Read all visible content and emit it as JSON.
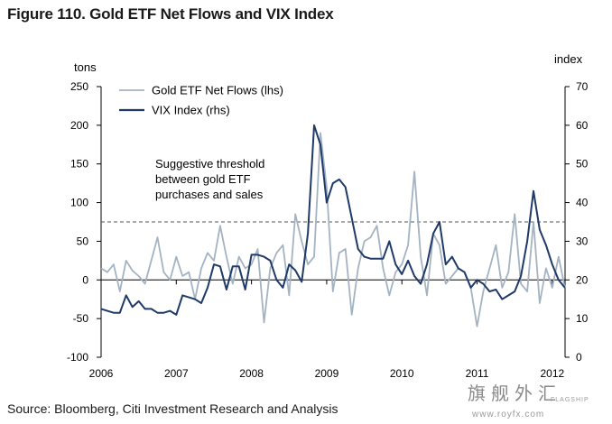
{
  "figure_title": "Figure 110. Gold ETF Net Flows and VIX Index",
  "source": "Source: Bloomberg, Citi Investment Research and Analysis",
  "watermark": {
    "chinese": "旗舰外汇",
    "flagship": "FLAGSHIP",
    "url": "www.royfx.com"
  },
  "colors": {
    "gold_etf": "#a4b3c2",
    "vix": "#1f3a68",
    "axis": "#000000",
    "threshold": "#555555"
  },
  "chart_data": {
    "type": "line",
    "title": "Figure 110. Gold ETF Net Flows and VIX Index",
    "ylabel_left": "tons",
    "ylabel_right": "index",
    "x_ticks": [
      "2006",
      "2007",
      "2008",
      "2009",
      "2010",
      "2011",
      "2012"
    ],
    "ylim_left": [
      -100,
      250
    ],
    "y_ticks_left": [
      "250",
      "200",
      "150",
      "100",
      "50",
      "0",
      "-50",
      "-100"
    ],
    "ylim_right": [
      0,
      70
    ],
    "y_ticks_right": [
      "70",
      "60",
      "50",
      "40",
      "30",
      "20",
      "10",
      "0"
    ],
    "legend_position": "top-left",
    "grid": false,
    "annotation": {
      "lines": [
        "Suggestive threshold",
        "between gold ETF",
        "purchases and sales"
      ],
      "threshold_lhs": 75
    },
    "series": [
      {
        "name": "Gold ETF Net Flows (lhs)",
        "axis": "left",
        "x": [
          2006.0,
          2006.083,
          2006.167,
          2006.25,
          2006.333,
          2006.417,
          2006.5,
          2006.583,
          2006.667,
          2006.75,
          2006.833,
          2006.917,
          2007.0,
          2007.083,
          2007.167,
          2007.25,
          2007.333,
          2007.417,
          2007.5,
          2007.583,
          2007.667,
          2007.75,
          2007.833,
          2007.917,
          2008.0,
          2008.083,
          2008.167,
          2008.25,
          2008.333,
          2008.417,
          2008.5,
          2008.583,
          2008.667,
          2008.75,
          2008.833,
          2008.917,
          2009.0,
          2009.083,
          2009.167,
          2009.25,
          2009.333,
          2009.417,
          2009.5,
          2009.583,
          2009.667,
          2009.75,
          2009.833,
          2009.917,
          2010.0,
          2010.083,
          2010.167,
          2010.25,
          2010.333,
          2010.417,
          2010.5,
          2010.583,
          2010.667,
          2010.75,
          2010.833,
          2010.917,
          2011.0,
          2011.083,
          2011.167,
          2011.25,
          2011.333,
          2011.417,
          2011.5,
          2011.583,
          2011.667,
          2011.75,
          2011.833,
          2011.917,
          2012.0,
          2012.083,
          2012.167
        ],
        "values": [
          15,
          10,
          20,
          -15,
          25,
          12,
          5,
          -5,
          25,
          55,
          10,
          0,
          30,
          5,
          10,
          -25,
          15,
          35,
          25,
          70,
          30,
          -5,
          30,
          15,
          20,
          40,
          -55,
          15,
          35,
          45,
          -20,
          85,
          50,
          20,
          30,
          190,
          120,
          -15,
          35,
          40,
          -45,
          15,
          50,
          55,
          70,
          15,
          -20,
          10,
          20,
          45,
          140,
          30,
          -20,
          60,
          45,
          -5,
          5,
          15,
          10,
          -10,
          -60,
          -15,
          15,
          45,
          -10,
          10,
          85,
          -5,
          -15,
          75,
          -30,
          15,
          -10,
          30,
          -10
        ]
      },
      {
        "name": "VIX Index (rhs)",
        "axis": "right",
        "x": [
          2006.0,
          2006.083,
          2006.167,
          2006.25,
          2006.333,
          2006.417,
          2006.5,
          2006.583,
          2006.667,
          2006.75,
          2006.833,
          2006.917,
          2007.0,
          2007.083,
          2007.167,
          2007.25,
          2007.333,
          2007.417,
          2007.5,
          2007.583,
          2007.667,
          2007.75,
          2007.833,
          2007.917,
          2008.0,
          2008.083,
          2008.167,
          2008.25,
          2008.333,
          2008.417,
          2008.5,
          2008.583,
          2008.667,
          2008.75,
          2008.833,
          2008.917,
          2009.0,
          2009.083,
          2009.167,
          2009.25,
          2009.333,
          2009.417,
          2009.5,
          2009.583,
          2009.667,
          2009.75,
          2009.833,
          2009.917,
          2010.0,
          2010.083,
          2010.167,
          2010.25,
          2010.333,
          2010.417,
          2010.5,
          2010.583,
          2010.667,
          2010.75,
          2010.833,
          2010.917,
          2011.0,
          2011.083,
          2011.167,
          2011.25,
          2011.333,
          2011.417,
          2011.5,
          2011.583,
          2011.667,
          2011.75,
          2011.833,
          2011.917,
          2012.0,
          2012.083,
          2012.167
        ],
        "values": [
          12.5,
          12,
          11.5,
          11.5,
          16,
          13,
          14.5,
          12.5,
          12.5,
          11.5,
          11.5,
          12,
          11,
          16,
          15.5,
          15,
          14,
          18,
          24,
          23.5,
          17.5,
          23.5,
          23.5,
          17.5,
          26.5,
          26.5,
          26,
          25,
          20,
          18,
          24,
          22.5,
          19.5,
          32,
          60,
          55,
          40,
          45,
          46,
          44,
          36,
          28,
          26,
          25.5,
          25.5,
          25.5,
          30,
          24,
          21.5,
          25,
          21,
          19,
          24,
          32,
          35,
          24,
          26,
          23,
          22,
          18,
          20,
          19,
          17,
          17.5,
          15,
          16,
          17,
          21,
          30,
          43,
          33,
          29,
          24,
          20,
          18
        ]
      }
    ]
  }
}
